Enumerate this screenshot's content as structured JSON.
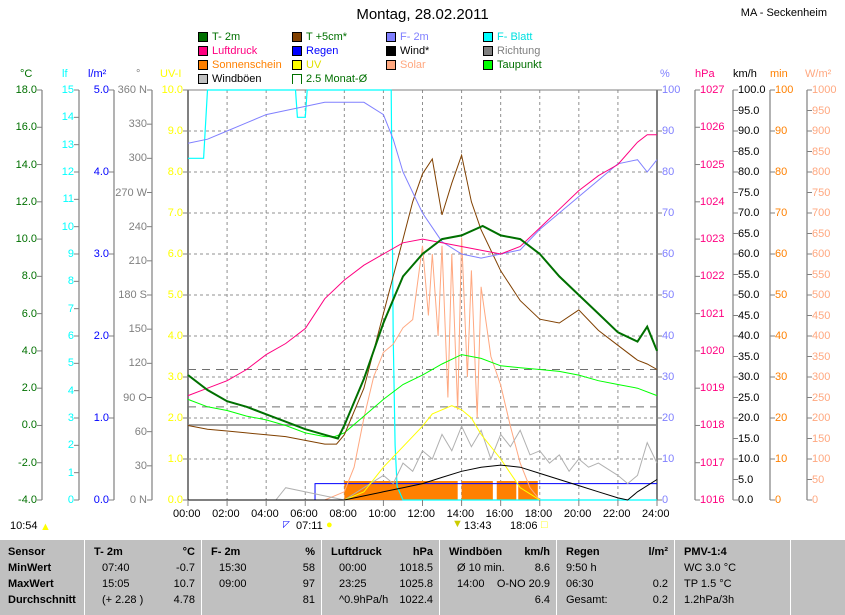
{
  "header": {
    "title": "Montag, 28.02.2011",
    "station": "MA - Seckenheim"
  },
  "legend": [
    {
      "label": "T- 2m",
      "color": "#007000",
      "text": "#007000"
    },
    {
      "label": "T +5cm*",
      "color": "#804000",
      "text": "#007000"
    },
    {
      "label": "F- 2m",
      "color": "#8080ff",
      "text": "#8080ff"
    },
    {
      "label": "F- Blatt",
      "color": "#00ffff",
      "text": "#00e0e0"
    },
    {
      "label": "Luftdruck",
      "color": "#ff0080",
      "text": "#ff0080"
    },
    {
      "label": "Regen",
      "color": "#0000ff",
      "text": "#0000ff"
    },
    {
      "label": "Wind*",
      "color": "#000000",
      "text": "#000000"
    },
    {
      "label": "Richtung",
      "color": "#808080",
      "text": "#808080"
    },
    {
      "label": "Sonnenschein",
      "color": "#ff8000",
      "text": "#ff8000"
    },
    {
      "label": "UV",
      "color": "#ffff00",
      "text": "#e0e000"
    },
    {
      "label": "Solar",
      "color": "#ffa880",
      "text": "#ffa880"
    },
    {
      "label": "Taupunkt",
      "color": "#00ff00",
      "text": "#007000"
    },
    {
      "label": "Windböen",
      "color": "#c0c0c0",
      "text": "#000000"
    },
    {
      "label": "2.5 Monat-Ø",
      "color": "bracket",
      "text": "#007000"
    }
  ],
  "chart_data": {
    "type": "line",
    "title": "Montag, 28.02.2011",
    "xlabel": "Uhrzeit",
    "xlim": [
      0,
      24
    ],
    "x_ticks": [
      "00:00",
      "02:00",
      "04:00",
      "06:00",
      "08:00",
      "10:00",
      "12:00",
      "14:00",
      "16:00",
      "18:00",
      "20:00",
      "22:00",
      "24:00"
    ],
    "axes": [
      {
        "unit": "°C",
        "color": "#007000",
        "min": -4,
        "max": 18,
        "ticks": [
          "18.0",
          "16.0",
          "14.0",
          "12.0",
          "10.0",
          "8.0",
          "6.0",
          "4.0",
          "2.0",
          "0.0",
          "-2.0",
          "-4.0"
        ]
      },
      {
        "unit": "lf",
        "color": "#00ffff",
        "min": 0,
        "max": 15,
        "ticks": [
          "15",
          "14",
          "13",
          "12",
          "11",
          "10",
          "9",
          "8",
          "7",
          "6",
          "5",
          "4",
          "3",
          "2",
          "1",
          "0"
        ]
      },
      {
        "unit": "l/m²",
        "color": "#0000ff",
        "min": 0,
        "max": 5,
        "ticks": [
          "5.0",
          "4.0",
          "3.0",
          "2.0",
          "1.0",
          "0.0"
        ]
      },
      {
        "unit": "°",
        "color": "#808080",
        "min": 0,
        "max": 360,
        "ticks": [
          "360 N",
          "330",
          "300",
          "270 W",
          "240",
          "210",
          "180 S",
          "150",
          "120",
          "90  O",
          "60",
          "30",
          "0    N"
        ]
      },
      {
        "unit": "UV-I",
        "color": "#ffff00",
        "min": 0,
        "max": 10,
        "ticks": [
          "10.0",
          "9.0",
          "8.0",
          "7.0",
          "6.0",
          "5.0",
          "4.0",
          "3.0",
          "2.0",
          "1.0",
          "0.0"
        ]
      },
      {
        "unit": "%",
        "color": "#8080ff",
        "min": 0,
        "max": 100,
        "ticks": [
          "100",
          "90",
          "80",
          "70",
          "60",
          "50",
          "40",
          "30",
          "20",
          "10",
          "0"
        ]
      },
      {
        "unit": "hPa",
        "color": "#ff0080",
        "min": 1016,
        "max": 1027,
        "ticks": [
          "1027",
          "1026",
          "1025",
          "1024",
          "1023",
          "1022",
          "1021",
          "1020",
          "1019",
          "1018",
          "1017",
          "1016"
        ]
      },
      {
        "unit": "km/h",
        "color": "#000000",
        "min": 0,
        "max": 100,
        "ticks": [
          "100.0",
          "95.0",
          "90.0",
          "85.0",
          "80.0",
          "75.0",
          "70.0",
          "65.0",
          "60.0",
          "55.0",
          "50.0",
          "45.0",
          "40.0",
          "35.0",
          "30.0",
          "25.0",
          "20.0",
          "15.0",
          "10.0",
          "5.0",
          "0.0"
        ]
      },
      {
        "unit": "min",
        "color": "#ff8000",
        "min": 0,
        "max": 100,
        "ticks": [
          "100",
          "90",
          "80",
          "70",
          "60",
          "50",
          "40",
          "30",
          "20",
          "10",
          "0"
        ]
      },
      {
        "unit": "W/m²",
        "color": "#ffa880",
        "min": 0,
        "max": 1000,
        "ticks": [
          "1000",
          "950",
          "900",
          "850",
          "800",
          "750",
          "700",
          "650",
          "600",
          "550",
          "500",
          "450",
          "400",
          "350",
          "300",
          "250",
          "200",
          "150",
          "100",
          "50",
          "0"
        ]
      }
    ],
    "series": [
      {
        "name": "F- Blatt",
        "axis": 1,
        "color": "#00ffff",
        "width": 1.2,
        "x": [
          0,
          0.8,
          1,
          5.5,
          5.6,
          6,
          6.1,
          6.5,
          7,
          8.8,
          9,
          10.4,
          10.5,
          10.6,
          10.7,
          11,
          24
        ],
        "y": [
          12.5,
          12.5,
          15,
          15,
          14,
          14,
          15,
          15,
          15,
          15,
          15,
          15,
          6,
          2,
          0.5,
          0,
          0
        ]
      },
      {
        "name": "Solar",
        "axis": 9,
        "color": "#ffa880",
        "width": 1,
        "x": [
          7,
          8,
          8.5,
          9,
          9.5,
          10,
          10.5,
          11,
          11.5,
          12,
          12.3,
          12.5,
          12.8,
          13,
          13.3,
          13.5,
          13.8,
          14,
          14.3,
          14.5,
          14.8,
          15,
          15.5,
          16,
          16.5,
          17,
          17.5,
          18
        ],
        "y": [
          0,
          20,
          80,
          200,
          300,
          360,
          380,
          420,
          440,
          620,
          450,
          600,
          400,
          620,
          250,
          600,
          220,
          640,
          300,
          560,
          200,
          520,
          350,
          280,
          180,
          90,
          30,
          0
        ]
      },
      {
        "name": "Windböen",
        "axis": 7,
        "color": "#b0b0b0",
        "width": 1,
        "x": [
          4.5,
          5,
          8,
          9,
          10,
          10.5,
          11,
          11.5,
          12,
          12.5,
          13,
          13.5,
          14,
          14.5,
          15,
          15.5,
          16,
          16.5,
          17,
          17.5,
          18,
          18.5,
          19,
          19.5,
          20,
          20.5,
          21,
          22,
          22.5,
          23,
          23.5,
          24
        ],
        "y": [
          0,
          3,
          0,
          3,
          6,
          4,
          9,
          7,
          12,
          10,
          16,
          12,
          18,
          13,
          17,
          10,
          16,
          13,
          17,
          11,
          12,
          9,
          11,
          7,
          10,
          8,
          9,
          6,
          4,
          6,
          14,
          9
        ]
      },
      {
        "name": "UV",
        "axis": 4,
        "color": "#ffff00",
        "width": 1,
        "x": [
          8,
          9,
          10,
          11,
          12,
          12.5,
          13,
          13.5,
          14,
          14.5,
          15,
          16,
          17,
          18
        ],
        "y": [
          0,
          0.2,
          0.8,
          1.3,
          1.8,
          2.1,
          2.2,
          2.3,
          2.2,
          2.0,
          1.6,
          1.0,
          0.3,
          0
        ]
      },
      {
        "name": "Wind*",
        "axis": 7,
        "color": "#000000",
        "width": 1,
        "x": [
          0,
          8,
          9,
          10,
          11,
          12,
          13,
          14,
          15,
          16,
          17,
          18,
          19,
          20,
          21,
          22,
          22.5,
          23,
          24
        ],
        "y": [
          0,
          0,
          1,
          2,
          3,
          4,
          5.5,
          7,
          8,
          8.5,
          8,
          6.5,
          5,
          3.5,
          2,
          0.5,
          0,
          2,
          5
        ]
      },
      {
        "name": "Taupunkt",
        "axis": 0,
        "color": "#00ff00",
        "width": 1,
        "x": [
          0,
          1,
          2,
          3,
          4,
          5,
          6,
          7,
          7.5,
          8,
          9,
          10,
          11,
          12,
          13,
          14,
          15,
          16,
          17,
          18,
          19,
          20,
          21,
          22,
          23,
          24
        ],
        "y": [
          1.4,
          1.0,
          0.8,
          0.5,
          0.3,
          0,
          -0.4,
          -0.6,
          -0.6,
          -0.4,
          0.5,
          1.4,
          2.2,
          2.7,
          3.3,
          3.8,
          3.6,
          3.2,
          3.1,
          3.0,
          2.9,
          2.7,
          2.4,
          2.2,
          2.0,
          1.6
        ]
      },
      {
        "name": "T +5cm*",
        "axis": 0,
        "color": "#804000",
        "width": 1,
        "x": [
          0,
          1,
          2,
          3,
          4,
          5,
          6,
          7,
          7.6,
          8,
          9,
          10,
          11,
          11.5,
          12,
          12.5,
          13,
          13.5,
          14,
          14.5,
          15,
          16,
          17,
          18,
          19,
          20,
          21,
          22,
          23,
          23.5,
          24
        ],
        "y": [
          0,
          -0.2,
          -0.3,
          -0.4,
          -0.5,
          -0.6,
          -0.8,
          -1.0,
          -1.0,
          -0.5,
          2,
          6,
          10,
          12,
          13.5,
          14.3,
          11.3,
          13,
          14.5,
          12,
          10.5,
          8.3,
          6.7,
          5.7,
          5.5,
          6.2,
          5.1,
          4.3,
          3.5,
          3.3,
          3.0
        ]
      },
      {
        "name": "F- 2m",
        "axis": 5,
        "color": "#8080ff",
        "width": 1,
        "x": [
          0,
          1,
          2,
          3,
          4,
          5,
          6,
          7,
          8,
          9,
          10,
          10.5,
          11,
          12,
          13,
          14,
          15,
          16,
          17,
          18,
          19,
          20,
          21,
          22,
          23,
          23.5,
          24
        ],
        "y": [
          87,
          88,
          90,
          92,
          94,
          95,
          96,
          97,
          97,
          97,
          94,
          88,
          80,
          70,
          63,
          60,
          59,
          60,
          61,
          66,
          70,
          74,
          78,
          82,
          83,
          80,
          83
        ]
      },
      {
        "name": "Luftdruck",
        "axis": 6,
        "color": "#ff0080",
        "width": 1,
        "x": [
          0,
          1,
          2,
          3,
          4,
          5,
          6,
          7,
          8,
          9,
          10,
          11,
          12,
          13,
          14,
          15,
          16,
          17,
          18,
          19,
          20,
          21,
          22,
          23,
          23.5,
          24
        ],
        "y": [
          1018.8,
          1019.0,
          1019.2,
          1019.5,
          1019.9,
          1020.2,
          1020.6,
          1021.4,
          1021.9,
          1022.3,
          1022.6,
          1022.9,
          1023.0,
          1022.9,
          1022.8,
          1022.7,
          1022.6,
          1022.8,
          1023.3,
          1023.8,
          1024.3,
          1024.7,
          1025.0,
          1025.6,
          1025.8,
          1025.8
        ]
      },
      {
        "name": "T- 2m",
        "axis": 0,
        "color": "#007000",
        "width": 2,
        "x": [
          0,
          1,
          2,
          3,
          4,
          5,
          6,
          7,
          7.67,
          8,
          9,
          10,
          11,
          12,
          13,
          14,
          15.08,
          16,
          17,
          18,
          19,
          20,
          21,
          22,
          23,
          23.5,
          24
        ],
        "y": [
          2.7,
          1.9,
          1.3,
          1.0,
          0.6,
          0.2,
          -0.2,
          -0.5,
          -0.7,
          0,
          2.5,
          5.5,
          8.0,
          9.2,
          10.0,
          10.2,
          10.7,
          10.2,
          10.0,
          9.2,
          8.0,
          7.0,
          6.0,
          5.0,
          4.5,
          5.3,
          4.0
        ]
      }
    ],
    "regen": {
      "axis": 2,
      "x": [
        0,
        6.5,
        6.5,
        24
      ],
      "y": [
        0,
        0,
        0.2,
        0.2
      ]
    },
    "sonnenschein_hours": [
      [
        8,
        13.8
      ],
      [
        14,
        15.6
      ],
      [
        15.8,
        16.8
      ],
      [
        16.9,
        17.9
      ]
    ],
    "avg_lines": [
      {
        "axis": 0,
        "value": 3.0
      },
      {
        "axis": 0,
        "value": 1.0
      }
    ]
  },
  "bottom": {
    "time_now": "10:54",
    "sunrise": "07:11",
    "noon": "13:43",
    "sunset": "18:06"
  },
  "table": {
    "columns": [
      {
        "h": "T- 2m",
        "u": "°C",
        "rows": [
          [
            "07:40",
            "-0.7"
          ],
          [
            "15:05",
            "10.7"
          ],
          [
            "(+ 2.28 )",
            "4.78"
          ]
        ]
      },
      {
        "h": "F- 2m",
        "u": "%",
        "rows": [
          [
            "15:30",
            "58"
          ],
          [
            "09:00",
            "97"
          ],
          [
            "",
            "81"
          ]
        ]
      },
      {
        "h": "Luftdruck",
        "u": "hPa",
        "rows": [
          [
            "00:00",
            "1018.5"
          ],
          [
            "23:25",
            "1025.8"
          ],
          [
            "^0.9hPa/h",
            "1022.4"
          ]
        ]
      },
      {
        "h": "Windböen",
        "u": "km/h",
        "rows": [
          [
            "Ø 10 min.",
            "8.6"
          ],
          [
            "14:00",
            "O-NO 20.9"
          ],
          [
            "",
            "6.4"
          ]
        ]
      },
      {
        "h": "Regen",
        "u": "l/m²",
        "rows": [
          [
            "9:50 h",
            ""
          ],
          [
            "06:30",
            "0.2"
          ],
          [
            "Gesamt:",
            "0.2"
          ]
        ]
      },
      {
        "h": "PMV-1:4",
        "u": "",
        "rows": [
          [
            "WC 3.0 °C",
            ""
          ],
          [
            "TP 1.5 °C",
            ""
          ],
          [
            "1.2hPa/3h",
            ""
          ]
        ]
      }
    ],
    "labels": [
      "Sensor",
      "MinWert",
      "MaxWert",
      "Durchschnitt"
    ]
  }
}
